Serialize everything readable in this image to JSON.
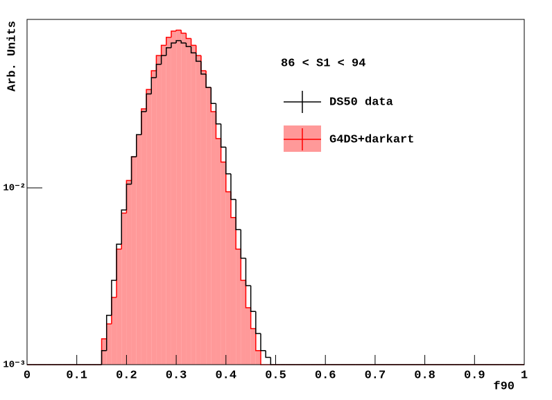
{
  "chart_data": {
    "type": "histogram",
    "xlabel": "f90",
    "ylabel": "Arb. Units",
    "annotation": "86 < S1 < 94",
    "log_y": true,
    "legend": "top-right",
    "bins": [
      0,
      0.01,
      0.02,
      0.03,
      0.04,
      0.05,
      0.06,
      0.07,
      0.08,
      0.09,
      0.1,
      0.11,
      0.12,
      0.13,
      0.14,
      0.15,
      0.16,
      0.17,
      0.18,
      0.19,
      0.2,
      0.21,
      0.22,
      0.23,
      0.24,
      0.25,
      0.26,
      0.27,
      0.28,
      0.29,
      0.3,
      0.31,
      0.32,
      0.33,
      0.34,
      0.35,
      0.36,
      0.37,
      0.38,
      0.39,
      0.4,
      0.41,
      0.42,
      0.43,
      0.44,
      0.45,
      0.46,
      0.47,
      0.48,
      0.49,
      0.5,
      0.51,
      0.52,
      0.53,
      0.54,
      0.55,
      0.56,
      0.57,
      0.58,
      0.59,
      0.6,
      0.61,
      0.62,
      0.63,
      0.64,
      0.65,
      0.66,
      0.67,
      0.68,
      0.69,
      0.7,
      0.71,
      0.72,
      0.73,
      0.74,
      0.75,
      0.76,
      0.77,
      0.78,
      0.79,
      0.8,
      0.81,
      0.82,
      0.83,
      0.84,
      0.85,
      0.86,
      0.87,
      0.88,
      0.89,
      0.9,
      0.91,
      0.92,
      0.93,
      0.94,
      0.95,
      0.96,
      0.97,
      0.98,
      0.99,
      1
    ],
    "series": [
      {
        "name": "G4DS+darkart",
        "color": "#ff0000",
        "fill": "#ff9999",
        "values": [
          0,
          0,
          0,
          0,
          0,
          0,
          0,
          0,
          0,
          0,
          0,
          0,
          0,
          0,
          0,
          0.0014,
          0.0017,
          0.0024,
          0.0045,
          0.0072,
          0.011,
          0.015,
          0.02,
          0.028,
          0.036,
          0.046,
          0.056,
          0.064,
          0.071,
          0.077,
          0.078,
          0.075,
          0.07,
          0.064,
          0.056,
          0.046,
          0.037,
          0.027,
          0.019,
          0.014,
          0.0095,
          0.0068,
          0.0045,
          0.003,
          0.0021,
          0.0016,
          0.0012,
          0,
          0,
          0,
          0,
          0,
          0,
          0,
          0,
          0,
          0,
          0,
          0,
          0,
          0,
          0,
          0,
          0,
          0,
          0,
          0,
          0,
          0,
          0,
          0,
          0,
          0,
          0,
          0,
          0,
          0,
          0,
          0,
          0,
          0,
          0,
          0,
          0,
          0,
          0,
          0,
          0,
          0,
          0,
          0,
          0,
          0,
          0,
          0,
          0,
          0,
          0,
          0,
          0
        ]
      },
      {
        "name": "DS50 data",
        "color": "#000000",
        "values": [
          0,
          0,
          0,
          0,
          0,
          0,
          0,
          0,
          0,
          0,
          0,
          0,
          0,
          0,
          0,
          0.0012,
          0.0019,
          0.003,
          0.0048,
          0.0075,
          0.0105,
          0.015,
          0.02,
          0.027,
          0.034,
          0.042,
          0.05,
          0.056,
          0.062,
          0.066,
          0.068,
          0.066,
          0.063,
          0.058,
          0.052,
          0.044,
          0.037,
          0.03,
          0.023,
          0.017,
          0.012,
          0.0086,
          0.0058,
          0.004,
          0.0028,
          0.002,
          0.0015,
          0.0012,
          0.0011,
          0,
          0,
          0,
          0,
          0,
          0,
          0,
          0,
          0,
          0,
          0,
          0,
          0,
          0,
          0,
          0,
          0,
          0,
          0,
          0,
          0,
          0,
          0,
          0,
          0,
          0,
          0,
          0,
          0,
          0,
          0,
          0,
          0,
          0,
          0,
          0,
          0,
          0,
          0,
          0,
          0,
          0,
          0,
          0,
          0,
          0,
          0,
          0,
          0,
          0,
          0
        ]
      }
    ],
    "xlim": [
      0,
      1
    ],
    "xticks": [
      0,
      0.1,
      0.2,
      0.3,
      0.4,
      0.5,
      0.6,
      0.7,
      0.8,
      0.9,
      1
    ],
    "ylim": [
      0.001,
      0.0897
    ],
    "yticks": [
      {
        "value": 0.001,
        "label": "10⁻³"
      },
      {
        "value": 0.01,
        "label": "10⁻²"
      }
    ]
  }
}
